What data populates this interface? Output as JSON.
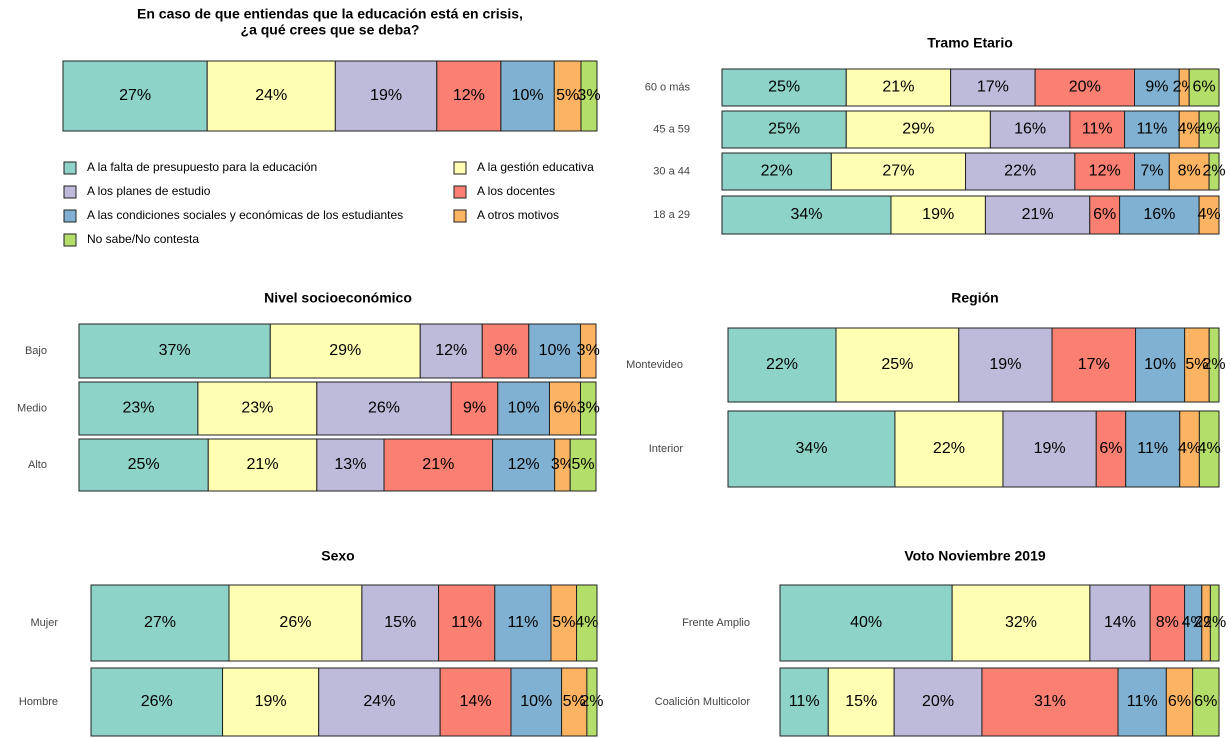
{
  "legend": [
    {
      "name": "A la falta de presupuesto para la educación",
      "color": "#8dd3c7"
    },
    {
      "name": "A la gestión educativa",
      "color": "#ffffb3"
    },
    {
      "name": "A los planes de estudio",
      "color": "#bebada"
    },
    {
      "name": "A los docentes",
      "color": "#fb8072"
    },
    {
      "name": "A las condiciones sociales y económicas de los estudiantes",
      "color": "#80b1d3"
    },
    {
      "name": "A otros motivos",
      "color": "#fdb462"
    },
    {
      "name": "No sabe/No contesta",
      "color": "#b3de69"
    }
  ],
  "chart_data": [
    {
      "type": "bar",
      "orientation": "horizontal",
      "stacked": true,
      "title": [
        "En caso de que entiendas que la educación está en crisis,",
        "¿a qué crees que se deba?"
      ],
      "categories": [
        null
      ],
      "series": [
        {
          "values": [
            27
          ],
          "value_labels": [
            "27%"
          ]
        },
        {
          "values": [
            24
          ],
          "value_labels": [
            "24%"
          ]
        },
        {
          "values": [
            19
          ],
          "value_labels": [
            "19%"
          ]
        },
        {
          "values": [
            12
          ],
          "value_labels": [
            "12%"
          ]
        },
        {
          "values": [
            10
          ],
          "value_labels": [
            "10%"
          ]
        },
        {
          "values": [
            5
          ],
          "value_labels": [
            "5%"
          ]
        },
        {
          "values": [
            3
          ],
          "value_labels": [
            "3%"
          ]
        }
      ]
    },
    {
      "type": "bar",
      "orientation": "horizontal",
      "stacked": true,
      "title": [
        "Tramo Etario"
      ],
      "categories": [
        "60 o más",
        "45 a 59",
        "30 a 44",
        "18 a 29"
      ],
      "series": [
        {
          "values": [
            25,
            25,
            22,
            34
          ],
          "value_labels": [
            "25%",
            "25%",
            "22%",
            "34%"
          ]
        },
        {
          "values": [
            21,
            29,
            27,
            19
          ],
          "value_labels": [
            "21%",
            "29%",
            "27%",
            "19%"
          ]
        },
        {
          "values": [
            17,
            16,
            22,
            21
          ],
          "value_labels": [
            "17%",
            "16%",
            "22%",
            "21%"
          ]
        },
        {
          "values": [
            20,
            11,
            12,
            6
          ],
          "value_labels": [
            "20%",
            "11%",
            "12%",
            "6%"
          ]
        },
        {
          "values": [
            9,
            11,
            7,
            16
          ],
          "value_labels": [
            "9%",
            "11%",
            "7%",
            "16%"
          ]
        },
        {
          "values": [
            2,
            4,
            8,
            4
          ],
          "value_labels": [
            "2%",
            "4%",
            "8%",
            "4%"
          ]
        },
        {
          "values": [
            6,
            4,
            2,
            0
          ],
          "value_labels": [
            "6%",
            "4%",
            "2%",
            null
          ]
        }
      ]
    },
    {
      "type": "bar",
      "orientation": "horizontal",
      "stacked": true,
      "title": [
        "Nivel socioeconómico"
      ],
      "categories": [
        "Bajo",
        "Medio",
        "Alto"
      ],
      "series": [
        {
          "values": [
            37,
            23,
            25
          ],
          "value_labels": [
            "37%",
            "23%",
            "25%"
          ]
        },
        {
          "values": [
            29,
            23,
            21
          ],
          "value_labels": [
            "29%",
            "23%",
            "21%"
          ]
        },
        {
          "values": [
            12,
            26,
            13
          ],
          "value_labels": [
            "12%",
            "26%",
            "13%"
          ]
        },
        {
          "values": [
            9,
            9,
            21
          ],
          "value_labels": [
            "9%",
            "9%",
            "21%"
          ]
        },
        {
          "values": [
            10,
            10,
            12
          ],
          "value_labels": [
            "10%",
            "10%",
            "12%"
          ]
        },
        {
          "values": [
            3,
            6,
            3
          ],
          "value_labels": [
            "3%",
            "6%",
            "3%"
          ]
        },
        {
          "values": [
            0,
            3,
            5
          ],
          "value_labels": [
            null,
            "3%",
            "5%"
          ]
        }
      ]
    },
    {
      "type": "bar",
      "orientation": "horizontal",
      "stacked": true,
      "title": [
        "Región"
      ],
      "categories": [
        "Montevideo",
        "Interior"
      ],
      "series": [
        {
          "values": [
            22,
            34
          ],
          "value_labels": [
            "22%",
            "34%"
          ]
        },
        {
          "values": [
            25,
            22
          ],
          "value_labels": [
            "25%",
            "22%"
          ]
        },
        {
          "values": [
            19,
            19
          ],
          "value_labels": [
            "19%",
            "19%"
          ]
        },
        {
          "values": [
            17,
            6
          ],
          "value_labels": [
            "17%",
            "6%"
          ]
        },
        {
          "values": [
            10,
            11
          ],
          "value_labels": [
            "10%",
            "11%"
          ]
        },
        {
          "values": [
            5,
            4
          ],
          "value_labels": [
            "5%",
            "4%"
          ]
        },
        {
          "values": [
            2,
            4
          ],
          "value_labels": [
            "2%",
            "4%"
          ]
        }
      ]
    },
    {
      "type": "bar",
      "orientation": "horizontal",
      "stacked": true,
      "title": [
        "Sexo"
      ],
      "categories": [
        "Mujer",
        "Hombre"
      ],
      "series": [
        {
          "values": [
            27,
            26
          ],
          "value_labels": [
            "27%",
            "26%"
          ]
        },
        {
          "values": [
            26,
            19
          ],
          "value_labels": [
            "26%",
            "19%"
          ]
        },
        {
          "values": [
            15,
            24
          ],
          "value_labels": [
            "15%",
            "24%"
          ]
        },
        {
          "values": [
            11,
            14
          ],
          "value_labels": [
            "11%",
            "14%"
          ]
        },
        {
          "values": [
            11,
            10
          ],
          "value_labels": [
            "11%",
            "10%"
          ]
        },
        {
          "values": [
            5,
            5
          ],
          "value_labels": [
            "5%",
            "5%"
          ]
        },
        {
          "values": [
            4,
            2
          ],
          "value_labels": [
            "4%",
            "2%"
          ]
        }
      ]
    },
    {
      "type": "bar",
      "orientation": "horizontal",
      "stacked": true,
      "title": [
        "Voto Noviembre 2019"
      ],
      "categories": [
        "Frente Amplio",
        "Coalición Multicolor"
      ],
      "series": [
        {
          "values": [
            40,
            11
          ],
          "value_labels": [
            "40%",
            "11%"
          ]
        },
        {
          "values": [
            32,
            15
          ],
          "value_labels": [
            "32%",
            "15%"
          ]
        },
        {
          "values": [
            14,
            20
          ],
          "value_labels": [
            "14%",
            "20%"
          ]
        },
        {
          "values": [
            8,
            31
          ],
          "value_labels": [
            "8%",
            "31%"
          ]
        },
        {
          "values": [
            4,
            11
          ],
          "value_labels": [
            "4%",
            "11%"
          ]
        },
        {
          "values": [
            2,
            6
          ],
          "value_labels": [
            "2%",
            "6%"
          ]
        },
        {
          "values": [
            2,
            6
          ],
          "value_labels": [
            "2%",
            "6%"
          ]
        }
      ]
    }
  ]
}
